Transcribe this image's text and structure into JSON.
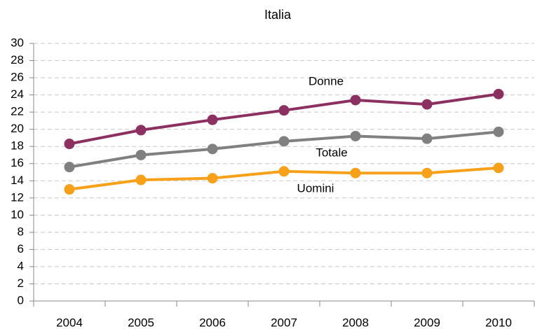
{
  "chart_data": {
    "type": "line",
    "title": "Italia",
    "categories": [
      "2004",
      "2005",
      "2006",
      "2007",
      "2008",
      "2009",
      "2010"
    ],
    "series": [
      {
        "name": "Donne",
        "color": "#8b3060",
        "values": [
          18.3,
          19.9,
          21.1,
          22.2,
          23.4,
          22.9,
          24.1
        ]
      },
      {
        "name": "Totale",
        "color": "#808080",
        "values": [
          15.6,
          17.0,
          17.7,
          18.6,
          19.2,
          18.9,
          19.7
        ]
      },
      {
        "name": "Uomini",
        "color": "#f7a11a",
        "values": [
          13.0,
          14.1,
          14.3,
          15.1,
          14.9,
          14.9,
          15.5
        ]
      }
    ],
    "ylim": [
      0,
      30
    ],
    "yticks": [
      0,
      2,
      4,
      6,
      8,
      10,
      12,
      14,
      16,
      18,
      20,
      22,
      24,
      26,
      28,
      30
    ],
    "grid": true
  }
}
